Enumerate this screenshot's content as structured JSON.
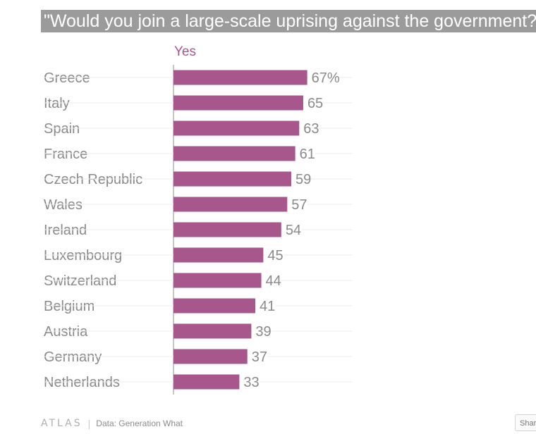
{
  "title": "\"Would you join a large-scale uprising against the government?\"",
  "footer": {
    "logo": "ATLAS",
    "separator": "|",
    "source": "Data:  Generation What"
  },
  "share_label": "Share",
  "colors": {
    "bar": "#a8578c",
    "label": "#8a8a8a",
    "value": "#8a8a8a"
  },
  "chart_data": {
    "type": "bar",
    "orientation": "horizontal",
    "title": "\"Would you join a large-scale uprising against the government?\"",
    "categories": [
      "Greece",
      "Italy",
      "Spain",
      "France",
      "Czech Republic",
      "Wales",
      "Ireland",
      "Luxembourg",
      "Switzerland",
      "Belgium",
      "Austria",
      "Germany",
      "Netherlands"
    ],
    "series": [
      {
        "name": "Yes",
        "values": [
          67,
          65,
          63,
          61,
          59,
          57,
          54,
          45,
          44,
          41,
          39,
          37,
          33
        ]
      }
    ],
    "value_labels": [
      "67%",
      "65",
      "63",
      "61",
      "59",
      "57",
      "54",
      "45",
      "44",
      "41",
      "39",
      "37",
      "33"
    ],
    "unit": "%",
    "xlim": [
      0,
      100
    ],
    "grid": true
  }
}
